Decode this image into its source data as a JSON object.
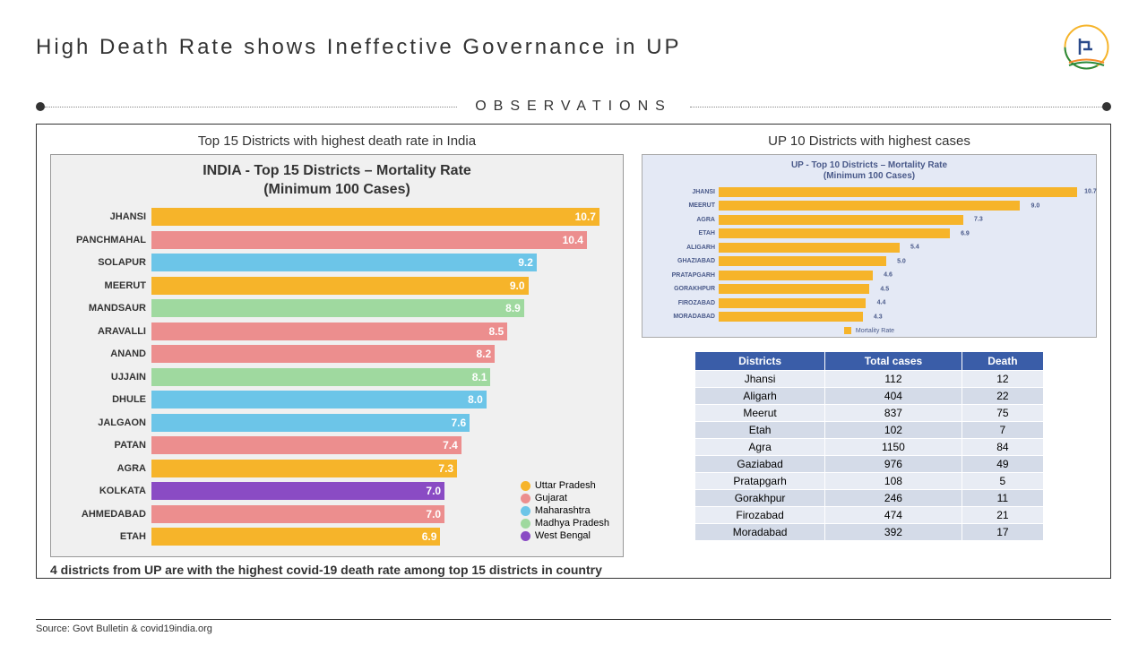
{
  "header": {
    "title": "High Death Rate shows Ineffective Governance in UP"
  },
  "divider_label": "OBSERVATIONS",
  "left": {
    "panel_title": "Top 15 Districts with highest death rate in India",
    "chart_title_1": "INDIA - Top 15 Districts – Mortality Rate",
    "chart_title_2": "(Minimum 100 Cases)",
    "max_value": 11,
    "bars": [
      {
        "label": "JHANSI",
        "value": 10.7,
        "color": "#f6b42a"
      },
      {
        "label": "PANCHMAHAL",
        "value": 10.4,
        "color": "#ec8e8e"
      },
      {
        "label": "SOLAPUR",
        "value": 9.2,
        "color": "#6cc5e8"
      },
      {
        "label": "MEERUT",
        "value": 9.0,
        "color": "#f6b42a"
      },
      {
        "label": "MANDSAUR",
        "value": 8.9,
        "color": "#9fd99f"
      },
      {
        "label": "ARAVALLI",
        "value": 8.5,
        "color": "#ec8e8e"
      },
      {
        "label": "ANAND",
        "value": 8.2,
        "color": "#ec8e8e"
      },
      {
        "label": "UJJAIN",
        "value": 8.1,
        "color": "#9fd99f"
      },
      {
        "label": "DHULE",
        "value": 8.0,
        "color": "#6cc5e8"
      },
      {
        "label": "JALGAON",
        "value": 7.6,
        "color": "#6cc5e8"
      },
      {
        "label": "PATAN",
        "value": 7.4,
        "color": "#ec8e8e"
      },
      {
        "label": "AGRA",
        "value": 7.3,
        "color": "#f6b42a"
      },
      {
        "label": "KOLKATA",
        "value": 7.0,
        "color": "#8a4bc4"
      },
      {
        "label": "AHMEDABAD",
        "value": 7.0,
        "color": "#ec8e8e"
      },
      {
        "label": "ETAH",
        "value": 6.9,
        "color": "#f6b42a"
      }
    ],
    "legend": [
      {
        "label": "Uttar Pradesh",
        "color": "#f6b42a"
      },
      {
        "label": "Gujarat",
        "color": "#ec8e8e"
      },
      {
        "label": "Maharashtra",
        "color": "#6cc5e8"
      },
      {
        "label": "Madhya Pradesh",
        "color": "#9fd99f"
      },
      {
        "label": "West Bengal",
        "color": "#8a4bc4"
      }
    ],
    "footnote": "4 districts from UP are with the highest covid-19 death rate among top 15 districts in country"
  },
  "right": {
    "panel_title": "UP 10 Districts with highest cases",
    "mini_title_1": "UP - Top 10 Districts – Mortality Rate",
    "mini_title_2": "(Minimum 100 Cases)",
    "mini_max": 11,
    "mini_color": "#f6b42a",
    "mini_bars": [
      {
        "label": "JHANSI",
        "value": 10.7
      },
      {
        "label": "MEERUT",
        "value": 9.0
      },
      {
        "label": "AGRA",
        "value": 7.3
      },
      {
        "label": "ETAH",
        "value": 6.9
      },
      {
        "label": "ALIGARH",
        "value": 5.4
      },
      {
        "label": "GHAZIABAD",
        "value": 5.0
      },
      {
        "label": "PRATAPGARH",
        "value": 4.6
      },
      {
        "label": "GORAKHPUR",
        "value": 4.5
      },
      {
        "label": "FIROZABAD",
        "value": 4.4
      },
      {
        "label": "MORADABAD",
        "value": 4.3
      }
    ],
    "mini_legend": "Mortality Rate",
    "table": {
      "headers": [
        "Districts",
        "Total cases",
        "Death"
      ],
      "rows": [
        [
          "Jhansi",
          "112",
          "12"
        ],
        [
          "Aligarh",
          "404",
          "22"
        ],
        [
          "Meerut",
          "837",
          "75"
        ],
        [
          "Etah",
          "102",
          "7"
        ],
        [
          "Agra",
          "1150",
          "84"
        ],
        [
          "Gaziabad",
          "976",
          "49"
        ],
        [
          "Pratapgarh",
          "108",
          "5"
        ],
        [
          "Gorakhpur",
          "246",
          "11"
        ],
        [
          "Firozabad",
          "474",
          "21"
        ],
        [
          "Moradabad",
          "392",
          "17"
        ]
      ]
    }
  },
  "source": "Source: Govt Bulletin & covid19india.org"
}
